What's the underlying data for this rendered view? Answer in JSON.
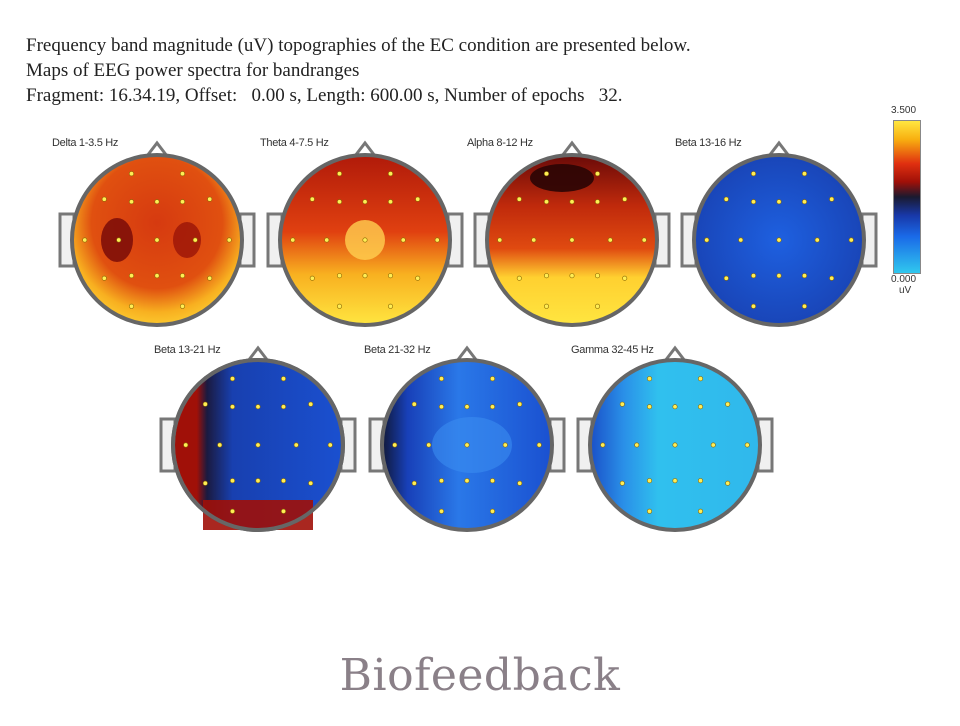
{
  "header": {
    "line1": "Frequency band magnitude (uV) topographies of the EC condition are presented below.",
    "line2": "Maps of EEG power spectra for bandranges",
    "line3": "Fragment: 16.34.19, Offset:   0.00 s, Length: 600.00 s, Number of epochs   32."
  },
  "maps": [
    {
      "label": "Delta 1-3.5 Hz",
      "palette": "warm-delta"
    },
    {
      "label": "Theta 4-7.5 Hz",
      "palette": "warm-theta"
    },
    {
      "label": "Alpha 8-12 Hz",
      "palette": "warm-alpha"
    },
    {
      "label": "Beta 13-16 Hz",
      "palette": "cool-beta1"
    },
    {
      "label": "Beta 13-21 Hz",
      "palette": "cool-beta2"
    },
    {
      "label": "Beta 21-32 Hz",
      "palette": "cool-beta3"
    },
    {
      "label": "Gamma 32-45 Hz",
      "palette": "cool-gamma"
    }
  ],
  "scale": {
    "max": "3.500",
    "min": "0.000",
    "unit": "uV"
  },
  "colors": {
    "yellow": "#ffe640",
    "red": "#e03010",
    "darkred": "#6a0a08",
    "blue": "#1a50d0",
    "cyan": "#30c8ee"
  },
  "caption": "Biofeedback"
}
